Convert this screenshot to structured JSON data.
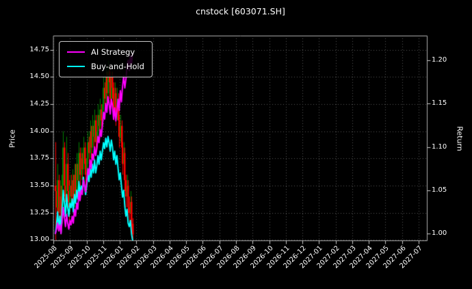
{
  "chart_data": {
    "type": "mixed",
    "subtypes": [
      "candlestick",
      "line"
    ],
    "title": "cnstock [603071.SH]",
    "ylabel_left": "Price",
    "ylabel_right": "Return",
    "grid": true,
    "legend_position": "upper left",
    "background": "dark",
    "x_tick_labels": [
      "2025-08",
      "2025-09",
      "2025-10",
      "2025-11",
      "2026-01",
      "2026-02",
      "2026-03",
      "2026-04",
      "2026-05",
      "2026-06",
      "2026-07",
      "2026-08",
      "2026-09",
      "2026-10",
      "2026-11",
      "2026-12",
      "2027-01",
      "2027-02",
      "2027-03",
      "2027-04",
      "2027-05",
      "2027-06",
      "2027-07"
    ],
    "price_ticks": [
      "13.00",
      "13.25",
      "13.50",
      "13.75",
      "14.00",
      "14.25",
      "14.50",
      "14.75"
    ],
    "return_ticks": [
      "1.00",
      "1.05",
      "1.10",
      "1.15",
      "1.20"
    ],
    "price_axis_range": [
      12.99,
      14.88
    ],
    "return_axis_range": [
      0.9913,
      1.2285
    ],
    "data_period": [
      "2025-08",
      "2026-01"
    ],
    "x_axis": {
      "ticks_total": 23,
      "data_start_tick": 0,
      "data_end_tick": 4.65
    },
    "series": [
      {
        "name": "AI Strategy",
        "type": "line",
        "axis": "return",
        "color": "#ff00ff",
        "values": [
          1.0,
          1.005,
          1.012,
          1.003,
          1.01,
          1.0,
          1.015,
          1.03,
          1.018,
          1.008,
          1.022,
          1.012,
          1.005,
          1.015,
          1.01,
          1.02,
          1.012,
          1.028,
          1.02,
          1.035,
          1.028,
          1.048,
          1.038,
          1.05,
          1.045,
          1.062,
          1.055,
          1.048,
          1.06,
          1.075,
          1.068,
          1.085,
          1.075,
          1.092,
          1.085,
          1.1,
          1.09,
          1.098,
          1.112,
          1.105,
          1.12,
          1.112,
          1.125,
          1.14,
          1.132,
          1.15,
          1.14,
          1.158,
          1.15,
          1.138,
          1.155,
          1.148,
          1.132,
          1.145,
          1.13,
          1.142,
          1.155,
          1.142,
          1.165,
          1.152,
          1.17,
          1.182,
          1.168,
          1.178,
          1.192,
          1.2,
          1.188,
          1.205,
          1.196,
          1.208
        ]
      },
      {
        "name": "Buy-and-Hold",
        "type": "line",
        "axis": "return",
        "color": "#00ffff",
        "values": [
          1.0,
          1.01,
          1.025,
          1.005,
          1.02,
          1.0,
          1.03,
          1.05,
          1.035,
          1.02,
          1.045,
          1.03,
          1.02,
          1.035,
          1.03,
          1.04,
          1.025,
          1.045,
          1.035,
          1.05,
          1.04,
          1.06,
          1.045,
          1.055,
          1.05,
          1.065,
          1.055,
          1.045,
          1.055,
          1.07,
          1.06,
          1.075,
          1.065,
          1.08,
          1.07,
          1.085,
          1.07,
          1.078,
          1.09,
          1.08,
          1.095,
          1.085,
          1.095,
          1.105,
          1.098,
          1.11,
          1.1,
          1.112,
          1.105,
          1.095,
          1.108,
          1.1,
          1.085,
          1.095,
          1.08,
          1.09,
          1.075,
          1.062,
          1.07,
          1.055,
          1.042,
          1.05,
          1.032,
          1.02,
          1.028,
          1.012,
          1.008,
          1.015,
          1.0,
          0.992
        ]
      }
    ],
    "candles": {
      "axis": "price",
      "up_color": "#008000",
      "down_color": "#ff0000",
      "open": [
        13.5,
        13.45,
        13.3,
        13.55,
        13.25,
        13.4,
        13.2,
        13.6,
        13.85,
        13.5,
        13.35,
        13.7,
        13.45,
        13.3,
        13.5,
        13.4,
        13.55,
        13.35,
        13.6,
        13.45,
        13.7,
        13.55,
        13.8,
        13.6,
        13.75,
        13.65,
        13.85,
        13.7,
        13.6,
        13.75,
        13.9,
        13.8,
        14.0,
        13.85,
        14.05,
        13.95,
        14.1,
        13.9,
        14.0,
        14.15,
        14.05,
        14.2,
        14.1,
        14.25,
        14.4,
        14.3,
        14.5,
        14.35,
        14.55,
        14.45,
        14.3,
        14.5,
        14.4,
        14.2,
        14.35,
        14.15,
        14.3,
        14.1,
        13.95,
        14.05,
        13.85,
        13.7,
        13.8,
        13.55,
        13.4,
        13.5,
        13.3,
        13.25,
        13.35,
        13.15
      ],
      "high": [
        13.9,
        13.55,
        13.7,
        13.6,
        13.55,
        13.5,
        13.75,
        14.0,
        13.9,
        13.6,
        13.95,
        13.8,
        13.55,
        13.6,
        13.6,
        13.65,
        13.6,
        13.7,
        13.7,
        13.8,
        13.75,
        13.9,
        13.85,
        13.85,
        13.8,
        13.95,
        13.9,
        13.75,
        13.85,
        14.0,
        13.95,
        14.1,
        14.05,
        14.15,
        14.1,
        14.2,
        14.15,
        14.1,
        14.25,
        14.2,
        14.3,
        14.25,
        14.35,
        14.5,
        14.45,
        14.6,
        14.55,
        14.65,
        14.6,
        14.5,
        14.55,
        14.55,
        14.45,
        14.45,
        14.4,
        14.4,
        14.35,
        14.15,
        14.15,
        14.1,
        13.9,
        13.9,
        13.85,
        13.6,
        13.6,
        13.55,
        13.4,
        13.45,
        13.4,
        13.2
      ],
      "low": [
        13.0,
        13.1,
        13.2,
        13.1,
        13.15,
        13.05,
        13.15,
        13.5,
        13.4,
        13.2,
        13.3,
        13.35,
        13.15,
        13.25,
        13.3,
        13.35,
        13.25,
        13.3,
        13.35,
        13.4,
        13.45,
        13.5,
        13.5,
        13.55,
        13.55,
        13.6,
        13.6,
        13.5,
        13.55,
        13.7,
        13.7,
        13.75,
        13.75,
        13.8,
        13.85,
        13.9,
        13.8,
        13.85,
        13.95,
        13.95,
        14.0,
        14.0,
        14.05,
        14.2,
        14.2,
        14.25,
        14.25,
        14.3,
        14.35,
        14.2,
        14.25,
        14.3,
        14.1,
        14.15,
        14.05,
        14.1,
        14.0,
        13.85,
        13.9,
        13.75,
        13.6,
        13.65,
        13.45,
        13.3,
        13.35,
        13.2,
        13.15,
        13.2,
        13.05,
        13.0
      ],
      "close": [
        13.45,
        13.3,
        13.55,
        13.25,
        13.4,
        13.2,
        13.6,
        13.85,
        13.5,
        13.35,
        13.7,
        13.45,
        13.3,
        13.5,
        13.4,
        13.55,
        13.35,
        13.6,
        13.45,
        13.7,
        13.55,
        13.8,
        13.6,
        13.75,
        13.65,
        13.85,
        13.7,
        13.6,
        13.75,
        13.9,
        13.8,
        14.0,
        13.85,
        14.05,
        13.95,
        14.1,
        13.9,
        14.0,
        14.15,
        14.05,
        14.2,
        14.1,
        14.25,
        14.4,
        14.3,
        14.5,
        14.35,
        14.55,
        14.45,
        14.3,
        14.5,
        14.4,
        14.2,
        14.35,
        14.15,
        14.3,
        14.1,
        13.95,
        14.05,
        13.85,
        13.7,
        13.8,
        13.55,
        13.4,
        13.5,
        13.3,
        13.25,
        13.35,
        13.15,
        13.05
      ]
    }
  },
  "style": {
    "background": "#000000",
    "text": "#ffffff",
    "grid": "#5a5a5a",
    "spine": "#b0b0b0",
    "tick": "#cccccc"
  }
}
